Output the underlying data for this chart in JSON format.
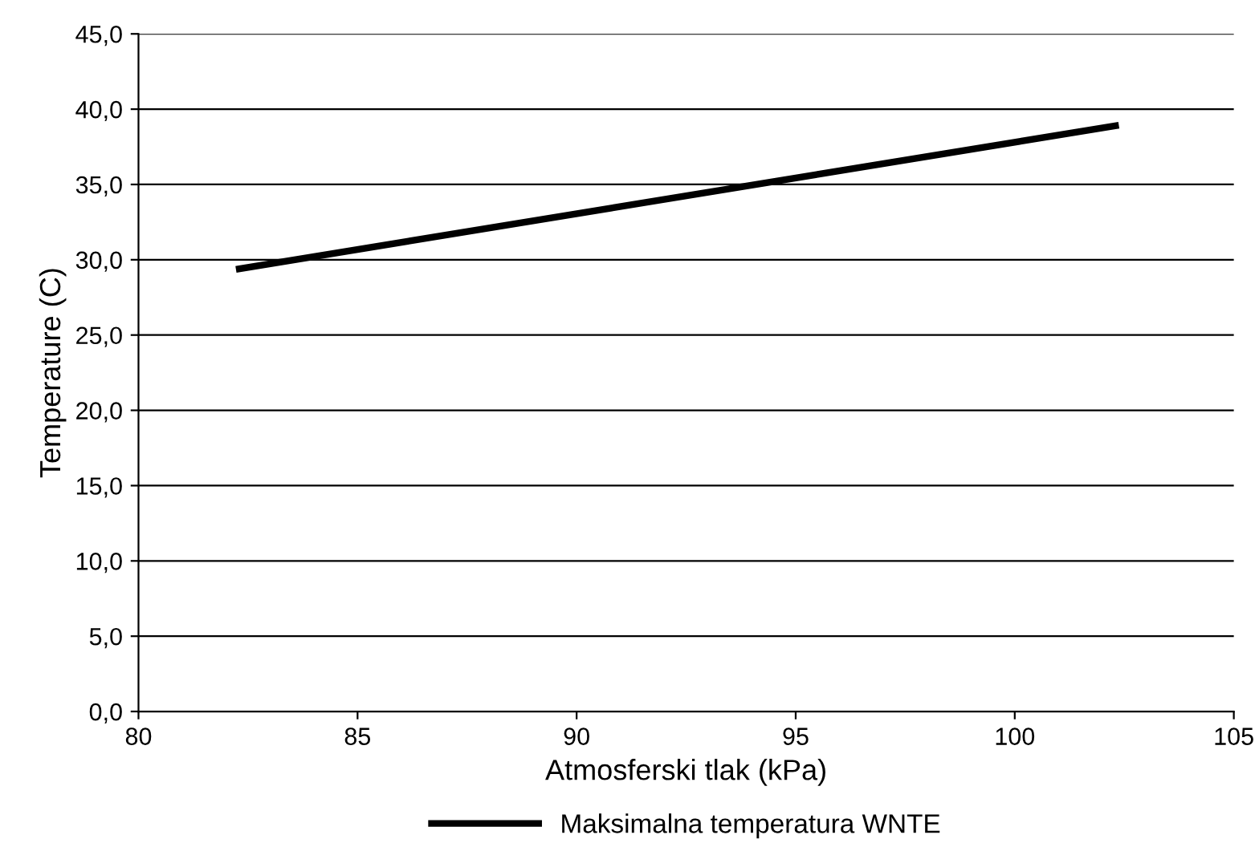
{
  "chart_data": {
    "type": "line",
    "xlabel": "Atmosferski tlak (kPa)",
    "ylabel": "Temperature (C)",
    "series": [
      {
        "name": "Maksimalna temperatura WNTE",
        "color": "#000000",
        "x": [
          82.3,
          102.3
        ],
        "values": [
          29.4,
          38.9
        ]
      }
    ],
    "xlim": [
      80,
      105
    ],
    "xticks": [
      80,
      85,
      90,
      95,
      100,
      105
    ],
    "ylim": [
      0,
      45
    ],
    "yticks": [
      {
        "value": 0,
        "label": "0,0"
      },
      {
        "value": 5,
        "label": "5,0"
      },
      {
        "value": 10,
        "label": "10,0"
      },
      {
        "value": 15,
        "label": "15,0"
      },
      {
        "value": 20,
        "label": "20,0"
      },
      {
        "value": 25,
        "label": "25,0"
      },
      {
        "value": 30,
        "label": "30,0"
      },
      {
        "value": 35,
        "label": "35,0"
      },
      {
        "value": 40,
        "label": "40,0"
      },
      {
        "value": 45,
        "label": "45,0"
      }
    ],
    "grid": "y",
    "legend": "bottom",
    "marker": "none",
    "line_style": "solid"
  }
}
